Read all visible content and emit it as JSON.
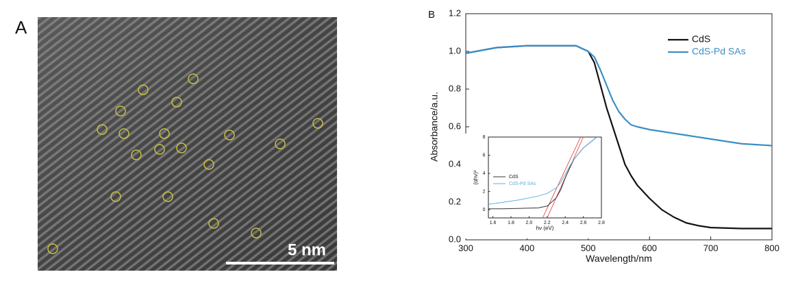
{
  "panel_a": {
    "label": "A",
    "scale_bar": "5 nm"
  },
  "panel_b_label": "B",
  "chart_data": [
    {
      "type": "line",
      "x_label": "Wavelength/nm",
      "y_label": "Absorbance/a.u.",
      "x": [
        300,
        350,
        400,
        450,
        480,
        500,
        510,
        520,
        530,
        540,
        550,
        560,
        570,
        580,
        600,
        620,
        640,
        660,
        680,
        700,
        750,
        800
      ],
      "series": [
        {
          "name": "CdS",
          "color": "#111111",
          "values": [
            0.99,
            1.02,
            1.03,
            1.03,
            1.03,
            1.0,
            0.94,
            0.82,
            0.7,
            0.6,
            0.5,
            0.4,
            0.34,
            0.29,
            0.22,
            0.16,
            0.12,
            0.09,
            0.075,
            0.065,
            0.06,
            0.06
          ]
        },
        {
          "name": "CdS-Pd SAs",
          "color": "#3a8fc6",
          "values": [
            0.99,
            1.02,
            1.03,
            1.03,
            1.03,
            1.0,
            0.97,
            0.9,
            0.82,
            0.74,
            0.68,
            0.64,
            0.61,
            0.6,
            0.585,
            0.575,
            0.565,
            0.555,
            0.545,
            0.535,
            0.51,
            0.5
          ]
        }
      ],
      "xlim": [
        300,
        800
      ],
      "xticks": [
        300,
        400,
        500,
        600,
        700,
        800
      ],
      "ylim": [
        0,
        1.2
      ],
      "yticks": [
        {
          "value": 0,
          "label": "0.0"
        },
        0.2,
        0.4,
        0.6,
        0.8,
        {
          "value": 1,
          "label": "1.0"
        },
        1.2
      ],
      "legend": "upper right"
    },
    {
      "type": "line",
      "x_label": "hν (eV)",
      "y_label": "(αhν)²",
      "x": [
        1.55,
        1.7,
        1.9,
        2.1,
        2.2,
        2.3,
        2.35,
        2.4,
        2.45,
        2.5,
        2.6,
        2.7,
        2.75
      ],
      "series": [
        {
          "name": "CdS",
          "color": "#333333",
          "values": [
            0.1,
            0.1,
            0.15,
            0.2,
            0.4,
            1.3,
            2.2,
            3.5,
            4.6,
            5.6,
            6.8,
            7.6,
            8
          ]
        },
        {
          "name": "CdS-Pd SAs",
          "color": "#5fb0dc",
          "values": [
            0.6,
            0.8,
            1.1,
            1.5,
            1.8,
            2.4,
            3,
            3.9,
            4.8,
            5.6,
            6.8,
            7.6,
            8
          ]
        }
      ],
      "fit_lines": [
        {
          "color": "#e03030",
          "x": [
            2.15,
            2.57
          ],
          "y": [
            -0.9,
            8
          ]
        },
        {
          "color": "#e03030",
          "x": [
            2.2,
            2.6
          ],
          "y": [
            -0.9,
            8
          ]
        }
      ],
      "xlim": [
        1.55,
        2.8
      ],
      "xticks": [
        1.6,
        1.8,
        {
          "value": 2,
          "label": "2.0"
        },
        2.2,
        2.4,
        2.6,
        2.8
      ],
      "ylim": [
        -0.9,
        8
      ],
      "yticks": [
        0,
        2,
        4,
        6,
        8
      ],
      "legend": "center left"
    }
  ]
}
